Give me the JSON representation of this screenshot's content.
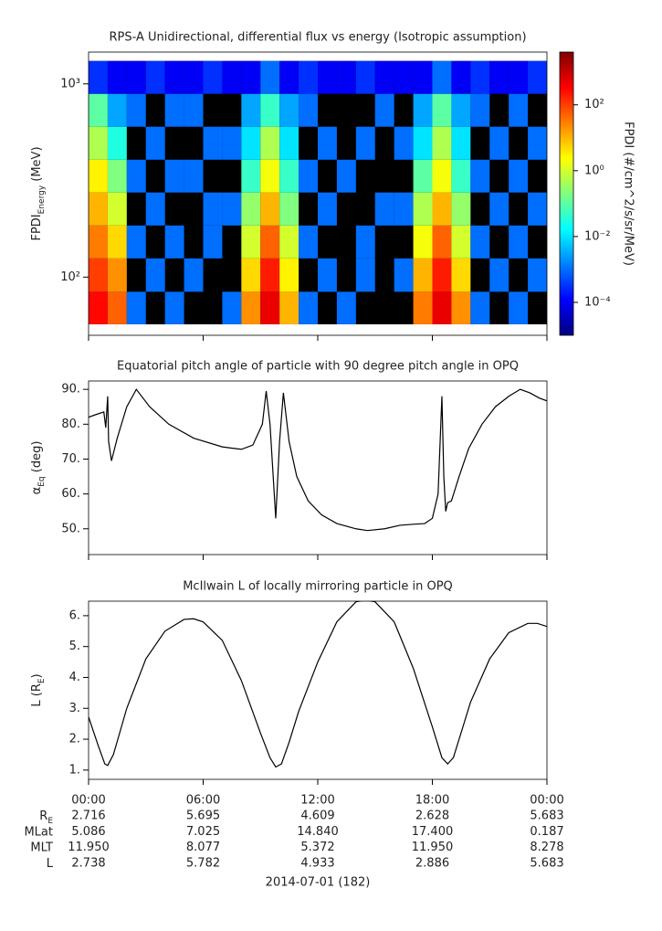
{
  "chart_data": [
    {
      "type": "heatmap",
      "title": "RPS-A Unidirectional, differential flux vs energy (Isotropic assumption)",
      "ylabel": {
        "text": "FPDI",
        "sub": "Energy",
        "tail": " (MeV)"
      },
      "ylog": true,
      "ylim": [
        50,
        1460
      ],
      "yticks": [
        {
          "value": 100,
          "label": "10²"
        },
        {
          "value": 1000,
          "label": "10³"
        }
      ],
      "xlim": [
        0,
        24
      ],
      "xticks": [
        0,
        6,
        12,
        18,
        24
      ],
      "time_bins": [
        0,
        1,
        2,
        3,
        4,
        5,
        6,
        7,
        8,
        9,
        10,
        11,
        12,
        13,
        14,
        15,
        16,
        17,
        18,
        19,
        20,
        21,
        22,
        23,
        24
      ],
      "energy_bins": [
        57,
        84,
        125,
        185,
        274,
        405,
        600,
        888,
        1313
      ],
      "values": [
        [
          300,
          50,
          0.001,
          null,
          0.001,
          null,
          null,
          0.001,
          20,
          500,
          10,
          0.001,
          null,
          0.001,
          null,
          null,
          null,
          30,
          500,
          20,
          0.001,
          null,
          0.001,
          null
        ],
        [
          100,
          20,
          null,
          0.001,
          null,
          0.001,
          null,
          null,
          5,
          200,
          3,
          null,
          0.001,
          null,
          0.001,
          null,
          0.001,
          10,
          200,
          5,
          null,
          0.001,
          null,
          0.001
        ],
        [
          30,
          5,
          0.001,
          null,
          0.001,
          null,
          0.001,
          null,
          1,
          50,
          1,
          0.001,
          null,
          null,
          0.001,
          null,
          null,
          2,
          50,
          1,
          0.001,
          null,
          0.001,
          null
        ],
        [
          10,
          1,
          null,
          0.001,
          null,
          null,
          0.001,
          0.001,
          0.3,
          10,
          0.2,
          null,
          0.001,
          null,
          null,
          0.001,
          0.001,
          0.5,
          10,
          0.3,
          null,
          0.001,
          null,
          0.001
        ],
        [
          3,
          0.2,
          0.001,
          null,
          0.001,
          0.001,
          null,
          null,
          0.05,
          2,
          0.05,
          0.001,
          null,
          0.001,
          null,
          null,
          null,
          0.1,
          2,
          0.05,
          0.001,
          null,
          0.001,
          null
        ],
        [
          0.5,
          0.03,
          null,
          0.001,
          null,
          null,
          0.001,
          0.001,
          0.01,
          0.5,
          0.01,
          null,
          0.001,
          null,
          0.001,
          null,
          0.001,
          0.01,
          0.5,
          0.01,
          null,
          0.001,
          null,
          0.001
        ],
        [
          0.1,
          0.003,
          0.001,
          null,
          0.001,
          0.001,
          null,
          null,
          0.003,
          0.05,
          0.003,
          0.001,
          null,
          null,
          null,
          0.001,
          null,
          0.003,
          0.1,
          0.003,
          0.001,
          null,
          0.001,
          null
        ],
        [
          0.0003,
          0.0001,
          0.0001,
          0.0003,
          0.0001,
          0.0001,
          0.0003,
          0.0001,
          0.0001,
          0.001,
          0.0001,
          0.0003,
          0.0001,
          0.0001,
          0.0003,
          0.0001,
          0.0001,
          0.0001,
          0.001,
          0.0001,
          0.0003,
          0.0001,
          0.0001,
          0.0003
        ]
      ],
      "zlabel": "FPDI (#/cm^2/s/sr/MeV)",
      "zlog": true,
      "zlim": [
        1e-05,
        4000
      ],
      "zticks": [
        {
          "value": 100,
          "label": "10²"
        },
        {
          "value": 1,
          "label": "10⁰"
        },
        {
          "value": 0.01,
          "label": "10⁻²"
        },
        {
          "value": 0.0001,
          "label": "10⁻⁴"
        }
      ]
    },
    {
      "type": "line",
      "title": "Equatorial pitch angle of particle with 90 degree pitch angle in OPQ",
      "ylabel": {
        "text": "α",
        "sub": "Eq",
        "tail": " (deg)"
      },
      "ylim": [
        42.6,
        92.4
      ],
      "yticks": [
        {
          "value": 50,
          "label": "50."
        },
        {
          "value": 60,
          "label": "60."
        },
        {
          "value": 70,
          "label": "70."
        },
        {
          "value": 80,
          "label": "80."
        },
        {
          "value": 90,
          "label": "90."
        }
      ],
      "xlim": [
        0,
        24
      ],
      "xticks": [
        0,
        6,
        12,
        18,
        24
      ],
      "color": "#000000",
      "x": [
        0,
        0.4,
        0.8,
        0.9,
        1.0,
        1.05,
        1.2,
        1.5,
        2.0,
        2.5,
        3.2,
        4.2,
        5.5,
        7,
        8,
        8.6,
        9.1,
        9.3,
        9.5,
        9.8,
        10.0,
        10.2,
        10.5,
        10.9,
        11.5,
        12.2,
        13,
        14,
        14.6,
        15.5,
        16.3,
        17,
        17.6,
        18.0,
        18.3,
        18.5,
        18.6,
        18.7,
        18.8,
        19.0,
        19.4,
        19.9,
        20.6,
        21.3,
        22,
        22.6,
        23.1,
        23.6,
        24
      ],
      "values": [
        82,
        82.8,
        83.5,
        79,
        88,
        75,
        69.5,
        76,
        85,
        90,
        85,
        80,
        76,
        73.5,
        72.8,
        74,
        80,
        89.5,
        80,
        53,
        75,
        89,
        75,
        65,
        58,
        54,
        51.5,
        50,
        49.5,
        50,
        51,
        51.3,
        51.5,
        53,
        60,
        88,
        65,
        55,
        57.5,
        58,
        65,
        73,
        80,
        85,
        88,
        90,
        89,
        87.5,
        86.7
      ]
    },
    {
      "type": "line",
      "title": "McIlwain L of locally mirroring particle in OPQ",
      "ylabel": {
        "text": "L (R",
        "sub": "E",
        "tail": ")"
      },
      "ylim": [
        0.7,
        6.47
      ],
      "yticks": [
        {
          "value": 1,
          "label": "1."
        },
        {
          "value": 2,
          "label": "2."
        },
        {
          "value": 3,
          "label": "3."
        },
        {
          "value": 4,
          "label": "4."
        },
        {
          "value": 5,
          "label": "5."
        },
        {
          "value": 6,
          "label": "6."
        }
      ],
      "xlim": [
        0,
        24
      ],
      "xticks": [
        {
          "value": 0,
          "label": "00:00"
        },
        {
          "value": 6,
          "label": "06:00"
        },
        {
          "value": 12,
          "label": "12:00"
        },
        {
          "value": 18,
          "label": "18:00"
        },
        {
          "value": 24,
          "label": "00:00"
        }
      ],
      "color": "#000000",
      "x": [
        0,
        0.5,
        0.85,
        1.0,
        1.3,
        2,
        3,
        4,
        5,
        5.5,
        6,
        7,
        8,
        9,
        9.5,
        9.8,
        10.1,
        10.5,
        11,
        12,
        13,
        14,
        14.5,
        15,
        16,
        17,
        18,
        18.5,
        18.8,
        19.1,
        19.5,
        20,
        21,
        22,
        23,
        23.5,
        24
      ],
      "values": [
        2.72,
        1.8,
        1.2,
        1.15,
        1.5,
        3.0,
        4.6,
        5.5,
        5.88,
        5.9,
        5.8,
        5.2,
        3.9,
        2.2,
        1.4,
        1.1,
        1.2,
        1.9,
        2.9,
        4.5,
        5.8,
        6.45,
        6.5,
        6.45,
        5.8,
        4.3,
        2.4,
        1.4,
        1.2,
        1.4,
        2.2,
        3.2,
        4.6,
        5.45,
        5.75,
        5.75,
        5.65
      ]
    }
  ],
  "ephemeris": {
    "rows": [
      {
        "label": "R",
        "label_sub": "E",
        "values": [
          "2.716",
          "5.695",
          "4.609",
          "2.628",
          "5.683"
        ]
      },
      {
        "label": "MLat",
        "values": [
          "5.086",
          "7.025",
          "14.840",
          "17.400",
          "0.187"
        ]
      },
      {
        "label": "MLT",
        "values": [
          "11.950",
          "8.077",
          "5.372",
          "11.950",
          "8.278"
        ]
      },
      {
        "label": "L",
        "values": [
          "2.738",
          "5.782",
          "4.933",
          "2.886",
          "5.683"
        ]
      }
    ],
    "date": "2014-07-01 (182)"
  }
}
